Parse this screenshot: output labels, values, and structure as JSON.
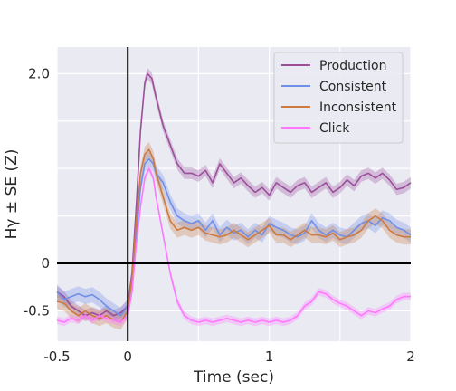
{
  "chart_data": {
    "type": "line",
    "title": "",
    "xlabel": "Time (sec)",
    "ylabel": "Hγ ± SE (Z)",
    "xlim": [
      -0.5,
      2.0
    ],
    "ylim": [
      -0.82,
      2.28
    ],
    "xticks": [
      -0.5,
      0,
      1,
      2
    ],
    "xtick_labels": [
      "-0.5",
      "0",
      "1",
      "2"
    ],
    "yticks": [
      -0.5,
      0,
      2.0
    ],
    "ytick_labels": [
      "-0.5",
      "0",
      "2.0"
    ],
    "x_gridlines": [
      -0.5,
      0,
      0.5,
      1,
      1.5,
      2
    ],
    "y_gridlines": [
      -0.5,
      0,
      0.5,
      1.0,
      1.5,
      2.0
    ],
    "grid": true,
    "reference_lines": {
      "x": 0,
      "y": 0
    },
    "legend_position": "top-right",
    "series": [
      {
        "name": "Production",
        "color": "#9b4f9b",
        "se": 0.06,
        "points": [
          [
            -0.5,
            -0.3
          ],
          [
            -0.45,
            -0.35
          ],
          [
            -0.4,
            -0.45
          ],
          [
            -0.35,
            -0.5
          ],
          [
            -0.3,
            -0.55
          ],
          [
            -0.25,
            -0.52
          ],
          [
            -0.2,
            -0.55
          ],
          [
            -0.15,
            -0.5
          ],
          [
            -0.1,
            -0.55
          ],
          [
            -0.05,
            -0.52
          ],
          [
            0,
            -0.45
          ],
          [
            0.03,
            -0.1
          ],
          [
            0.06,
            0.6
          ],
          [
            0.09,
            1.4
          ],
          [
            0.12,
            1.9
          ],
          [
            0.14,
            2.0
          ],
          [
            0.17,
            1.95
          ],
          [
            0.2,
            1.75
          ],
          [
            0.25,
            1.45
          ],
          [
            0.3,
            1.25
          ],
          [
            0.35,
            1.05
          ],
          [
            0.4,
            0.95
          ],
          [
            0.45,
            0.95
          ],
          [
            0.5,
            0.92
          ],
          [
            0.55,
            0.98
          ],
          [
            0.6,
            0.85
          ],
          [
            0.65,
            1.05
          ],
          [
            0.7,
            0.95
          ],
          [
            0.75,
            0.85
          ],
          [
            0.8,
            0.9
          ],
          [
            0.85,
            0.82
          ],
          [
            0.9,
            0.75
          ],
          [
            0.95,
            0.8
          ],
          [
            1.0,
            0.72
          ],
          [
            1.05,
            0.85
          ],
          [
            1.1,
            0.8
          ],
          [
            1.15,
            0.75
          ],
          [
            1.2,
            0.82
          ],
          [
            1.25,
            0.85
          ],
          [
            1.3,
            0.75
          ],
          [
            1.35,
            0.8
          ],
          [
            1.4,
            0.85
          ],
          [
            1.45,
            0.75
          ],
          [
            1.5,
            0.8
          ],
          [
            1.55,
            0.88
          ],
          [
            1.6,
            0.82
          ],
          [
            1.65,
            0.92
          ],
          [
            1.7,
            0.95
          ],
          [
            1.75,
            0.9
          ],
          [
            1.8,
            0.95
          ],
          [
            1.85,
            0.88
          ],
          [
            1.9,
            0.78
          ],
          [
            1.95,
            0.8
          ],
          [
            2.0,
            0.85
          ]
        ]
      },
      {
        "name": "Consistent",
        "color": "#6f8fe8",
        "se": 0.08,
        "points": [
          [
            -0.5,
            -0.3
          ],
          [
            -0.45,
            -0.38
          ],
          [
            -0.4,
            -0.35
          ],
          [
            -0.35,
            -0.32
          ],
          [
            -0.3,
            -0.35
          ],
          [
            -0.25,
            -0.33
          ],
          [
            -0.2,
            -0.38
          ],
          [
            -0.15,
            -0.45
          ],
          [
            -0.1,
            -0.5
          ],
          [
            -0.05,
            -0.55
          ],
          [
            0,
            -0.45
          ],
          [
            0.03,
            -0.2
          ],
          [
            0.06,
            0.3
          ],
          [
            0.09,
            0.8
          ],
          [
            0.12,
            1.05
          ],
          [
            0.15,
            1.1
          ],
          [
            0.18,
            1.05
          ],
          [
            0.2,
            0.95
          ],
          [
            0.25,
            0.85
          ],
          [
            0.3,
            0.65
          ],
          [
            0.35,
            0.5
          ],
          [
            0.4,
            0.45
          ],
          [
            0.45,
            0.42
          ],
          [
            0.5,
            0.45
          ],
          [
            0.55,
            0.35
          ],
          [
            0.6,
            0.45
          ],
          [
            0.65,
            0.3
          ],
          [
            0.7,
            0.38
          ],
          [
            0.75,
            0.32
          ],
          [
            0.8,
            0.35
          ],
          [
            0.85,
            0.28
          ],
          [
            0.9,
            0.35
          ],
          [
            0.95,
            0.3
          ],
          [
            1.0,
            0.42
          ],
          [
            1.05,
            0.38
          ],
          [
            1.1,
            0.35
          ],
          [
            1.15,
            0.3
          ],
          [
            1.2,
            0.28
          ],
          [
            1.25,
            0.32
          ],
          [
            1.3,
            0.45
          ],
          [
            1.35,
            0.35
          ],
          [
            1.4,
            0.3
          ],
          [
            1.45,
            0.35
          ],
          [
            1.5,
            0.3
          ],
          [
            1.55,
            0.28
          ],
          [
            1.6,
            0.35
          ],
          [
            1.65,
            0.42
          ],
          [
            1.7,
            0.45
          ],
          [
            1.75,
            0.4
          ],
          [
            1.8,
            0.48
          ],
          [
            1.85,
            0.45
          ],
          [
            1.9,
            0.38
          ],
          [
            1.95,
            0.35
          ],
          [
            2.0,
            0.3
          ]
        ]
      },
      {
        "name": "Inconsistent",
        "color": "#cc7a40",
        "se": 0.08,
        "points": [
          [
            -0.5,
            -0.4
          ],
          [
            -0.45,
            -0.42
          ],
          [
            -0.4,
            -0.5
          ],
          [
            -0.35,
            -0.55
          ],
          [
            -0.3,
            -0.5
          ],
          [
            -0.25,
            -0.55
          ],
          [
            -0.2,
            -0.58
          ],
          [
            -0.15,
            -0.55
          ],
          [
            -0.1,
            -0.6
          ],
          [
            -0.05,
            -0.62
          ],
          [
            0,
            -0.5
          ],
          [
            0.03,
            -0.15
          ],
          [
            0.06,
            0.45
          ],
          [
            0.09,
            0.95
          ],
          [
            0.12,
            1.15
          ],
          [
            0.15,
            1.2
          ],
          [
            0.18,
            1.1
          ],
          [
            0.2,
            0.95
          ],
          [
            0.25,
            0.7
          ],
          [
            0.3,
            0.45
          ],
          [
            0.35,
            0.35
          ],
          [
            0.4,
            0.38
          ],
          [
            0.45,
            0.35
          ],
          [
            0.5,
            0.38
          ],
          [
            0.55,
            0.32
          ],
          [
            0.6,
            0.3
          ],
          [
            0.65,
            0.28
          ],
          [
            0.7,
            0.3
          ],
          [
            0.75,
            0.35
          ],
          [
            0.8,
            0.3
          ],
          [
            0.85,
            0.25
          ],
          [
            0.9,
            0.3
          ],
          [
            0.95,
            0.35
          ],
          [
            1.0,
            0.4
          ],
          [
            1.05,
            0.3
          ],
          [
            1.1,
            0.3
          ],
          [
            1.15,
            0.25
          ],
          [
            1.2,
            0.3
          ],
          [
            1.25,
            0.35
          ],
          [
            1.3,
            0.3
          ],
          [
            1.35,
            0.3
          ],
          [
            1.4,
            0.28
          ],
          [
            1.45,
            0.32
          ],
          [
            1.5,
            0.25
          ],
          [
            1.55,
            0.28
          ],
          [
            1.6,
            0.3
          ],
          [
            1.65,
            0.35
          ],
          [
            1.7,
            0.45
          ],
          [
            1.75,
            0.5
          ],
          [
            1.8,
            0.45
          ],
          [
            1.85,
            0.35
          ],
          [
            1.9,
            0.3
          ],
          [
            1.95,
            0.28
          ],
          [
            2.0,
            0.28
          ]
        ]
      },
      {
        "name": "Click",
        "color": "#ff77ff",
        "se": 0.04,
        "points": [
          [
            -0.5,
            -0.6
          ],
          [
            -0.45,
            -0.62
          ],
          [
            -0.4,
            -0.58
          ],
          [
            -0.35,
            -0.6
          ],
          [
            -0.3,
            -0.55
          ],
          [
            -0.25,
            -0.6
          ],
          [
            -0.2,
            -0.55
          ],
          [
            -0.15,
            -0.58
          ],
          [
            -0.1,
            -0.6
          ],
          [
            -0.05,
            -0.62
          ],
          [
            0,
            -0.55
          ],
          [
            0.03,
            -0.3
          ],
          [
            0.06,
            0.2
          ],
          [
            0.09,
            0.6
          ],
          [
            0.12,
            0.9
          ],
          [
            0.15,
            1.0
          ],
          [
            0.18,
            0.9
          ],
          [
            0.2,
            0.7
          ],
          [
            0.25,
            0.3
          ],
          [
            0.3,
            -0.1
          ],
          [
            0.35,
            -0.4
          ],
          [
            0.4,
            -0.55
          ],
          [
            0.45,
            -0.6
          ],
          [
            0.5,
            -0.62
          ],
          [
            0.55,
            -0.6
          ],
          [
            0.6,
            -0.62
          ],
          [
            0.65,
            -0.6
          ],
          [
            0.7,
            -0.58
          ],
          [
            0.75,
            -0.6
          ],
          [
            0.8,
            -0.62
          ],
          [
            0.85,
            -0.6
          ],
          [
            0.9,
            -0.62
          ],
          [
            0.95,
            -0.6
          ],
          [
            1.0,
            -0.62
          ],
          [
            1.05,
            -0.6
          ],
          [
            1.1,
            -0.62
          ],
          [
            1.15,
            -0.6
          ],
          [
            1.2,
            -0.55
          ],
          [
            1.25,
            -0.45
          ],
          [
            1.3,
            -0.4
          ],
          [
            1.35,
            -0.3
          ],
          [
            1.4,
            -0.32
          ],
          [
            1.45,
            -0.38
          ],
          [
            1.5,
            -0.42
          ],
          [
            1.55,
            -0.45
          ],
          [
            1.6,
            -0.5
          ],
          [
            1.65,
            -0.55
          ],
          [
            1.7,
            -0.5
          ],
          [
            1.75,
            -0.52
          ],
          [
            1.8,
            -0.48
          ],
          [
            1.85,
            -0.45
          ],
          [
            1.9,
            -0.38
          ],
          [
            1.95,
            -0.35
          ],
          [
            2.0,
            -0.35
          ]
        ]
      }
    ]
  }
}
